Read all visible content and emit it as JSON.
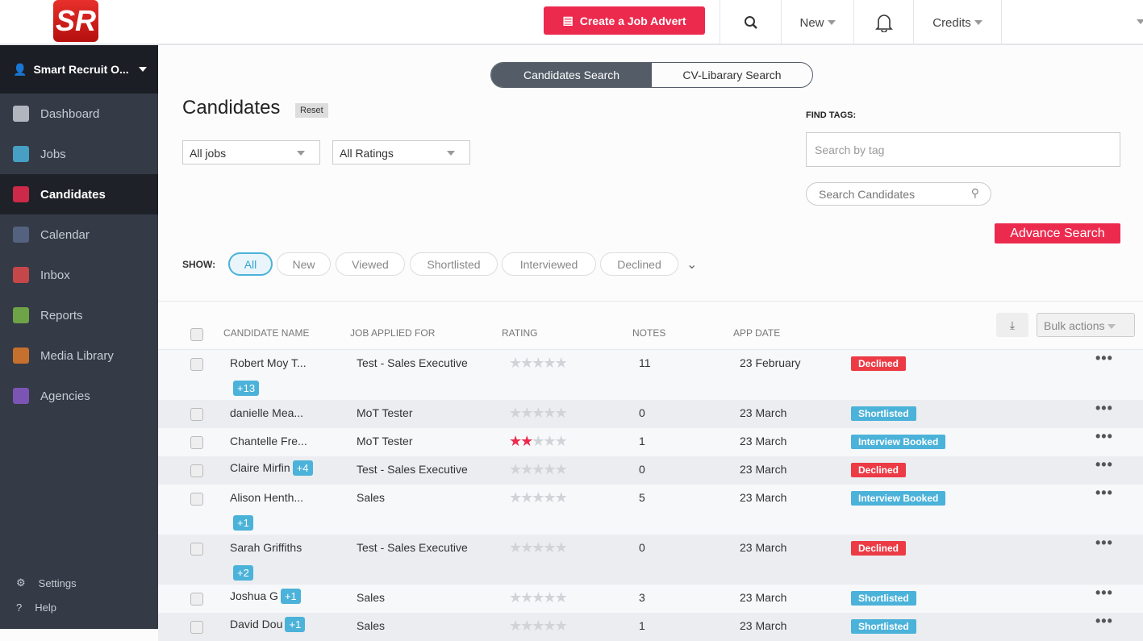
{
  "topbar": {
    "logo": "SR",
    "create_label": "Create a Job Advert",
    "new_label": "New",
    "credits_label": "Credits"
  },
  "sidebar": {
    "account": "Smart Recruit O...",
    "items": [
      {
        "label": "Dashboard",
        "color": "#c7cbd3"
      },
      {
        "label": "Jobs",
        "color": "#4bb2d9"
      },
      {
        "label": "Candidates",
        "color": "#ec2a4e"
      },
      {
        "label": "Calendar",
        "color": "#5a6a8a"
      },
      {
        "label": "Inbox",
        "color": "#e04a4a"
      },
      {
        "label": "Reports",
        "color": "#7ab648"
      },
      {
        "label": "Media Library",
        "color": "#e07a2a"
      },
      {
        "label": "Agencies",
        "color": "#8a5ac8"
      }
    ],
    "settings": "Settings",
    "help": "Help"
  },
  "search_toggle": {
    "candidates": "Candidates Search",
    "cvlibrary": "CV-Libarary Search"
  },
  "page": {
    "title": "Candidates",
    "reset": "Reset",
    "jobs_select": "All jobs",
    "ratings_select": "All Ratings",
    "find_tags": "FIND TAGS:",
    "tag_placeholder": "Search by tag",
    "search_placeholder": "Search Candidates",
    "advance": "Advance Search",
    "show_label": "SHOW:",
    "filters": [
      "All",
      "New",
      "Viewed",
      "Shortlisted",
      "Interviewed",
      "Declined"
    ],
    "active_filter": "All"
  },
  "table": {
    "headers": [
      "CANDIDATE NAME",
      "JOB APPLIED FOR",
      "RATING",
      "NOTES",
      "APP DATE"
    ],
    "bulk": "Bulk actions",
    "status_colors": {
      "Declined": "#ec3b45",
      "Shortlisted": "#4bb2d9",
      "Interview Booked": "#4bb2d9"
    },
    "rows": [
      {
        "name": "Robert Moy T...",
        "tag": "+13",
        "tag_inline": false,
        "job": "Test - Sales Executive",
        "rating": 0,
        "notes": "11",
        "date": "23 February",
        "status": "Declined"
      },
      {
        "name": "danielle Mea...",
        "tag": "",
        "tag_inline": false,
        "job": "MoT Tester",
        "rating": 0,
        "notes": "0",
        "date": "23 March",
        "status": "Shortlisted"
      },
      {
        "name": "Chantelle Fre...",
        "tag": "",
        "tag_inline": false,
        "job": "MoT Tester",
        "rating": 2,
        "notes": "1",
        "date": "23 March",
        "status": "Interview Booked"
      },
      {
        "name": "Claire Mirfin",
        "tag": "+4",
        "tag_inline": true,
        "job": "Test - Sales Executive",
        "rating": 0,
        "notes": "0",
        "date": "23 March",
        "status": "Declined"
      },
      {
        "name": "Alison Henth...",
        "tag": "+1",
        "tag_inline": false,
        "job": "Sales",
        "rating": 0,
        "notes": "5",
        "date": "23 March",
        "status": "Interview Booked"
      },
      {
        "name": "Sarah Griffiths",
        "tag": "+2",
        "tag_inline": false,
        "job": "Test - Sales Executive",
        "rating": 0,
        "notes": "0",
        "date": "23 March",
        "status": "Declined"
      },
      {
        "name": "Joshua G",
        "tag": "+1",
        "tag_inline": true,
        "job": "Sales",
        "rating": 0,
        "notes": "3",
        "date": "23 March",
        "status": "Shortlisted"
      },
      {
        "name": "David Dou",
        "tag": "+1",
        "tag_inline": true,
        "job": "Sales",
        "rating": 0,
        "notes": "1",
        "date": "23 March",
        "status": "Shortlisted"
      }
    ]
  }
}
